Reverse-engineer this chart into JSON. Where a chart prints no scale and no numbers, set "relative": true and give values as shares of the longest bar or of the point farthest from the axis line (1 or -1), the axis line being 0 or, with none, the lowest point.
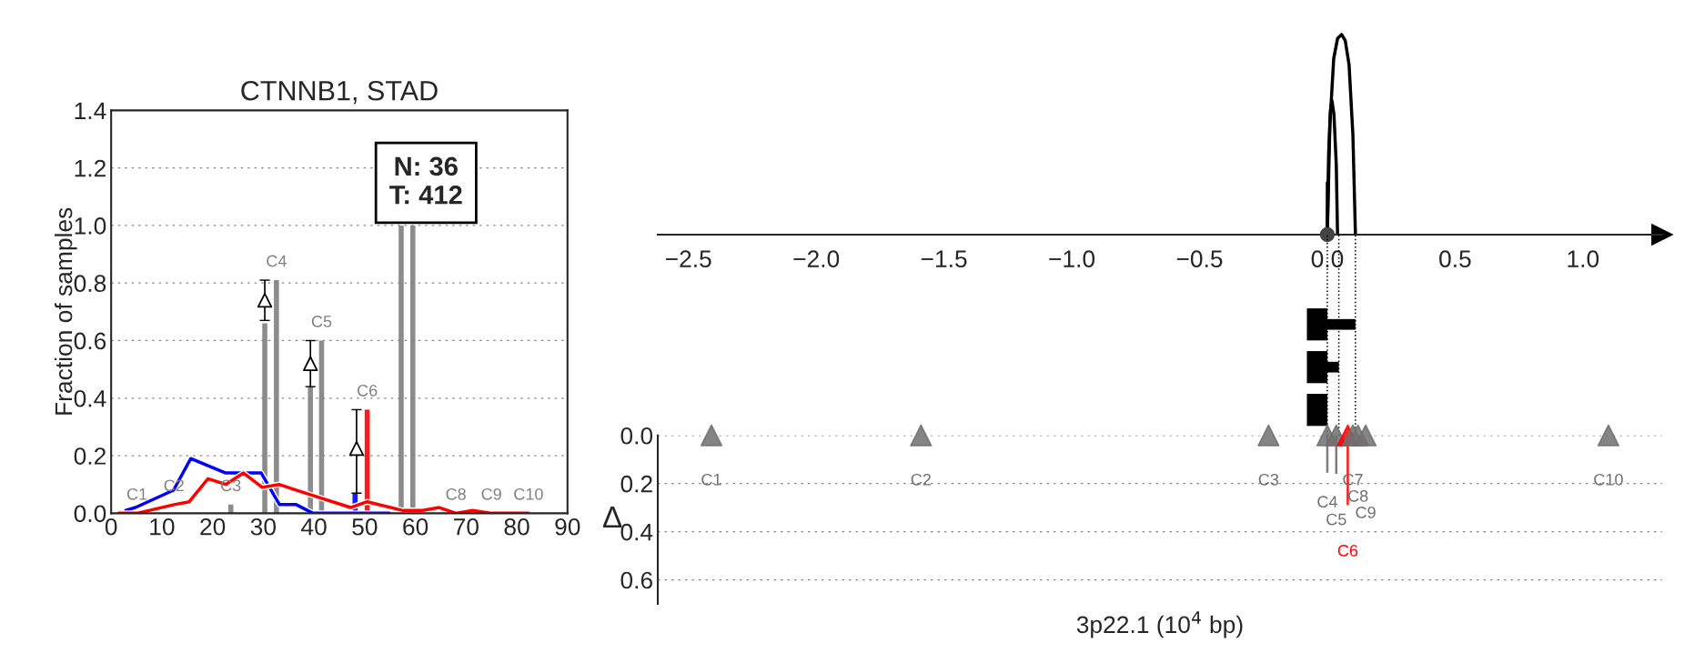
{
  "chart_data": [
    {
      "type": "bar",
      "title": "CTNNB1, STAD",
      "ylabel": "Fraction of samples",
      "xlim": [
        0,
        90
      ],
      "xticks": [
        0,
        10,
        20,
        30,
        40,
        50,
        60,
        70,
        80,
        90
      ],
      "ylim": [
        0,
        1.4
      ],
      "yticks": [
        {
          "value": 0,
          "label": "0.0"
        },
        {
          "value": 0.2,
          "label": "0.2"
        },
        {
          "value": 0.4,
          "label": "0.4"
        },
        {
          "value": 0.6,
          "label": "0.6"
        },
        {
          "value": 0.8,
          "label": "0.8"
        },
        {
          "value": 1.0,
          "label": "1.0"
        },
        {
          "value": 1.2,
          "label": "1.2"
        },
        {
          "value": 1.4,
          "label": "1.4"
        }
      ],
      "grid": "y",
      "series": [
        {
          "x": [
            23.6,
            30.3,
            32.6,
            39.3,
            41.5,
            48.1,
            50.5,
            57.2,
            59.5
          ],
          "values": [
            0.03,
            0.66,
            0.81,
            0.44,
            0.6,
            0.07,
            0.36,
            1.0,
            1.0
          ],
          "colors": [
            "#808080",
            "#808080",
            "#808080",
            "#808080",
            "#808080",
            "#0000ff",
            "#ff0000",
            "#808080",
            "#808080"
          ]
        },
        {
          "type": "line",
          "color": "#0000ff",
          "x": [
            2.9,
            4.8,
            12.3,
            15.7,
            22.6,
            29.6,
            33.2,
            36.5,
            39.8,
            54.9
          ],
          "values": [
            0.01,
            0.02,
            0.08,
            0.19,
            0.14,
            0.14,
            0.03,
            0.03,
            0.0,
            0.0
          ]
        },
        {
          "type": "line",
          "color": "#ff0000",
          "x": [
            1.5,
            5.1,
            12.4,
            15.4,
            19.1,
            22.6,
            26.1,
            29.8,
            33.1,
            36.6,
            40.1,
            47.2,
            50.5,
            57.4,
            61.4,
            64.7,
            68.0,
            71.3,
            75.0,
            79.0,
            82.3
          ],
          "values": [
            0,
            0,
            0.03,
            0.04,
            0.12,
            0.1,
            0.14,
            0.09,
            0.1,
            0.08,
            0.06,
            0.02,
            0.04,
            0.01,
            0.01,
            0.02,
            0,
            0.01,
            0,
            0,
            0
          ]
        },
        {
          "type": "scatter",
          "color": "#000000",
          "marker": "triangle",
          "x": [
            30.3,
            39.3,
            48.4
          ],
          "values": [
            0.74,
            0.52,
            0.225
          ],
          "errors": [
            [
              0.67,
              0.81
            ],
            [
              0.44,
              0.6
            ],
            [
              0.07,
              0.36
            ]
          ]
        }
      ],
      "annotations": [
        "N: 36\nT: 412",
        {
          "text": "C1",
          "x": 5.1,
          "y": 0
        },
        {
          "text": "C2",
          "x": 12.4,
          "y": 0.03
        },
        {
          "text": "C3",
          "x": 23.6,
          "y": 0.03
        },
        {
          "text": "C4",
          "x": 32.6,
          "y": 0.81
        },
        {
          "text": "C5",
          "x": 41.5,
          "y": 0.6
        },
        {
          "text": "C6",
          "x": 50.5,
          "y": 0.36
        },
        {
          "text": "C8",
          "x": 68.0,
          "y": 0
        },
        {
          "text": "C9",
          "x": 75.0,
          "y": 0
        },
        {
          "text": "C10",
          "x": 82.3,
          "y": 0
        }
      ]
    },
    {
      "type": "line",
      "relative": true,
      "xlim": [
        -2.62,
        1.31
      ],
      "xticks": [
        {
          "value": -2.5,
          "label": "−2.5"
        },
        {
          "value": -2.0,
          "label": "−2.0"
        },
        {
          "value": -1.5,
          "label": "−1.5"
        },
        {
          "value": -1.0,
          "label": "−1.0"
        },
        {
          "value": -0.5,
          "label": "−0.5"
        },
        {
          "value": 0.0,
          "label": "0.0"
        },
        {
          "value": 0.5,
          "label": "0.5"
        },
        {
          "value": 1.0,
          "label": "1.0"
        }
      ],
      "series": [
        {
          "color": "#000000",
          "x": [
            0.0,
            0.01,
            0.025,
            0.04,
            0.056,
            0.07,
            0.085,
            0.1,
            0.11
          ],
          "values": [
            0,
            0.55,
            0.88,
            0.98,
            1.0,
            0.97,
            0.85,
            0.5,
            0
          ]
        },
        {
          "color": "#000000",
          "x": [
            0.0,
            0.005,
            0.012,
            0.018,
            0.026,
            0.035,
            0.04
          ],
          "values": [
            0,
            0.4,
            0.62,
            0.67,
            0.6,
            0.35,
            0
          ]
        },
        {
          "color": "#000000",
          "x": [
            0.0,
            0.0
          ],
          "values": [
            0,
            0.26
          ]
        },
        {
          "type": "scatter",
          "color": "#444444",
          "marker": "circle",
          "x": [
            0.0
          ],
          "values": [
            0
          ]
        }
      ]
    },
    {
      "type": "bar",
      "orientation": "horizontal",
      "stacked": true,
      "tick_labels": false,
      "categories": [
        null,
        null,
        null
      ],
      "xlim": [
        -2.62,
        1.31
      ],
      "series": [
        {
          "color": "#000000",
          "base": [
            -0.08,
            -0.08,
            -0.08
          ],
          "values": [
            0.08,
            0.08,
            0.08
          ]
        },
        {
          "color": "#000000",
          "values": [
            0.11,
            0.045,
            null
          ]
        }
      ],
      "ref_lines": [
        {
          "axis": "x",
          "value": 0.0,
          "line_style": "dotted"
        },
        {
          "axis": "x",
          "value": 0.045,
          "line_style": "dotted"
        },
        {
          "axis": "x",
          "value": 0.11,
          "line_style": "dotted"
        }
      ]
    },
    {
      "type": "bar",
      "xlabel": "3p22.1 (10$^{4}$ bp)",
      "ylabel": "Δ",
      "tick_labels": "y",
      "grid": "y",
      "xlim": [
        -2.62,
        1.31
      ],
      "ylim": [
        0.7,
        0
      ],
      "yticks": [
        {
          "value": 0,
          "label": "0.0"
        },
        {
          "value": 0.2,
          "label": "0.2"
        },
        {
          "value": 0.4,
          "label": "0.4"
        },
        {
          "value": 0.6,
          "label": "0.6"
        }
      ],
      "series": [
        {
          "x": [
            -2.41,
            -1.59,
            -0.23,
            0.0,
            0.035,
            0.08,
            0.1,
            0.12,
            0.15,
            1.1
          ],
          "values": [
            0,
            0,
            0,
            0.155,
            0.16,
            0.29,
            0,
            0,
            0,
            0
          ],
          "colors": [
            "#707070",
            "#707070",
            "#707070",
            "#707070",
            "#707070",
            "#ff0000",
            "#707070",
            "#707070",
            "#707070",
            "#707070"
          ]
        },
        {
          "type": "scatter",
          "marker": "triangle",
          "x": [
            -2.41,
            -1.59,
            -0.23,
            0.0,
            0.035,
            0.08,
            0.1,
            0.12,
            0.15,
            1.1
          ],
          "values": [
            0,
            0,
            0,
            0,
            0,
            0,
            0,
            0,
            0,
            0
          ],
          "colors": [
            "#707070",
            "#707070",
            "#707070",
            "#707070",
            "#707070",
            "#ff0000",
            "#707070",
            "#707070",
            "#707070",
            "#707070"
          ]
        }
      ],
      "annotations": [
        "C1",
        "C2",
        "C3",
        "C4",
        "C5",
        "C6",
        "C7",
        "C8",
        "C9",
        "C10"
      ]
    }
  ]
}
